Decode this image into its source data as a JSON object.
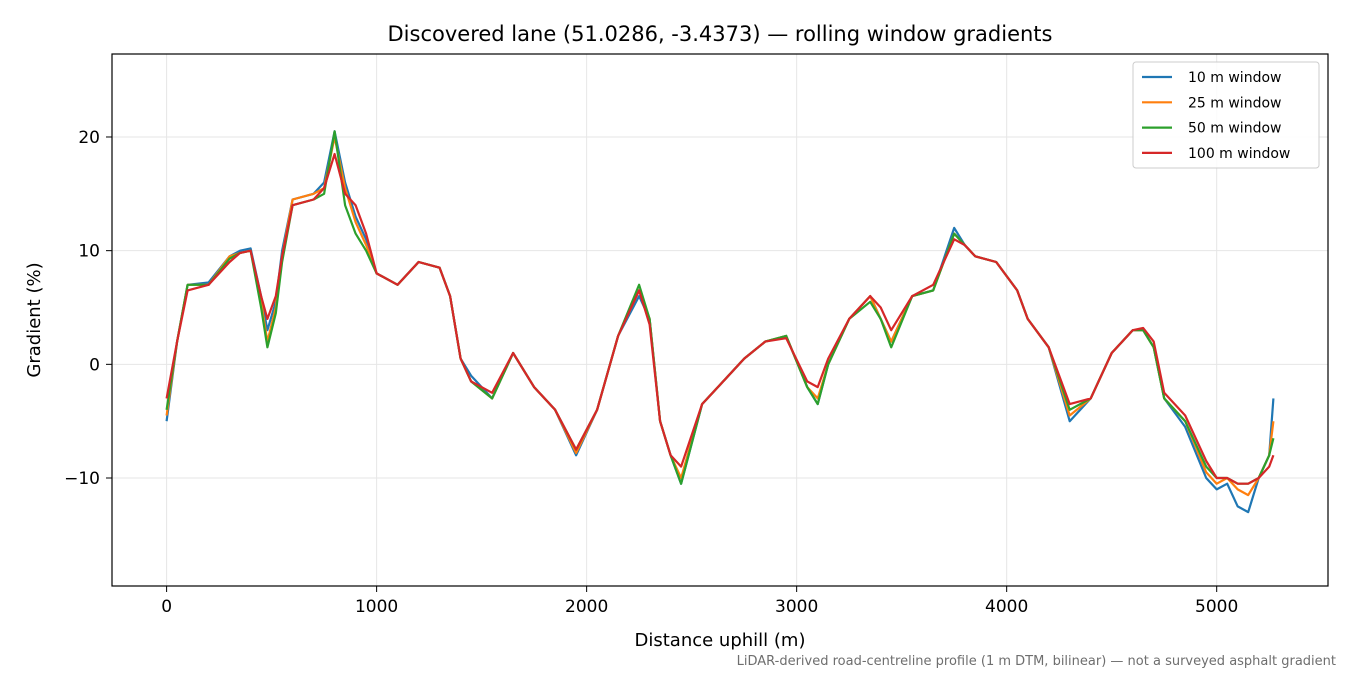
{
  "chart_data": {
    "type": "line",
    "title": "Discovered lane (51.0286, -3.4373) — rolling window gradients",
    "xlabel": "Distance uphill (m)",
    "ylabel": "Gradient (%)",
    "footnote": "LiDAR-derived road-centreline profile (1 m DTM, bilinear) — not a surveyed asphalt gradient",
    "xlim": [
      -260,
      5530
    ],
    "ylim": [
      -19.5,
      27.3
    ],
    "x_ticks": [
      0,
      1000,
      2000,
      3000,
      4000,
      5000
    ],
    "x_tick_labels": [
      "0",
      "1000",
      "2000",
      "3000",
      "4000",
      "5000"
    ],
    "y_ticks": [
      20,
      10,
      0,
      -10
    ],
    "y_tick_labels": [
      "20",
      "10",
      "0",
      "−10"
    ],
    "grid": true,
    "legend_position": "top-right",
    "x": [
      0,
      50,
      100,
      200,
      300,
      350,
      400,
      450,
      480,
      520,
      550,
      600,
      700,
      750,
      800,
      850,
      900,
      950,
      1000,
      1100,
      1200,
      1300,
      1350,
      1400,
      1450,
      1550,
      1650,
      1750,
      1850,
      1950,
      2050,
      2150,
      2250,
      2300,
      2350,
      2400,
      2450,
      2550,
      2650,
      2750,
      2850,
      2950,
      3050,
      3100,
      3150,
      3250,
      3350,
      3400,
      3450,
      3550,
      3650,
      3750,
      3800,
      3850,
      3950,
      4050,
      4100,
      4200,
      4300,
      4400,
      4500,
      4600,
      4650,
      4700,
      4750,
      4850,
      4950,
      5000,
      5050,
      5100,
      5150,
      5200,
      5250,
      5270
    ],
    "series": [
      {
        "name": "10 m window",
        "color": "#1f77b4",
        "values": [
          -5.0,
          2.0,
          7.0,
          7.2,
          9.5,
          10.0,
          10.2,
          6.0,
          3.0,
          5.5,
          10.0,
          14.5,
          15.0,
          16.0,
          20.5,
          16.0,
          13.0,
          11.0,
          8.0,
          7.0,
          9.0,
          8.5,
          6.0,
          0.5,
          -1.0,
          -3.0,
          1.0,
          -2.0,
          -4.0,
          -8.0,
          -4.0,
          2.5,
          6.0,
          4.0,
          -5.0,
          -8.0,
          -10.5,
          -3.5,
          -1.5,
          0.5,
          2.0,
          2.5,
          -2.0,
          -3.5,
          0.0,
          4.0,
          6.0,
          4.0,
          2.0,
          6.0,
          6.5,
          12.0,
          10.5,
          9.5,
          9.0,
          6.5,
          4.0,
          1.5,
          -5.0,
          -3.0,
          1.0,
          3.0,
          3.0,
          1.5,
          -3.0,
          -5.5,
          -10.0,
          -11.0,
          -10.5,
          -12.5,
          -13.0,
          -10.0,
          -8.0,
          -3.0
        ]
      },
      {
        "name": "25 m window",
        "color": "#ff7f0e",
        "values": [
          -4.5,
          2.0,
          7.0,
          7.0,
          9.5,
          9.8,
          10.0,
          5.5,
          2.0,
          5.0,
          9.5,
          14.5,
          15.0,
          15.5,
          20.0,
          15.5,
          12.5,
          10.5,
          8.0,
          7.0,
          9.0,
          8.5,
          6.0,
          0.5,
          -1.5,
          -3.0,
          1.0,
          -2.0,
          -4.0,
          -7.8,
          -4.0,
          2.5,
          6.5,
          4.0,
          -5.0,
          -8.0,
          -10.0,
          -3.5,
          -1.5,
          0.5,
          2.0,
          2.5,
          -2.0,
          -3.0,
          0.0,
          4.0,
          6.0,
          4.0,
          2.0,
          6.0,
          6.5,
          11.5,
          10.5,
          9.5,
          9.0,
          6.5,
          4.0,
          1.5,
          -4.5,
          -3.0,
          1.0,
          3.0,
          3.0,
          1.5,
          -3.0,
          -5.0,
          -9.5,
          -10.5,
          -10.0,
          -11.0,
          -11.5,
          -10.0,
          -8.0,
          -5.0
        ]
      },
      {
        "name": "50 m window",
        "color": "#2ca02c",
        "values": [
          -4.0,
          2.0,
          7.0,
          7.0,
          9.3,
          9.8,
          10.0,
          5.0,
          1.5,
          4.5,
          9.0,
          14.0,
          14.5,
          15.0,
          20.5,
          14.0,
          11.5,
          10.0,
          8.0,
          7.0,
          9.0,
          8.5,
          6.0,
          0.5,
          -1.5,
          -3.0,
          1.0,
          -2.0,
          -4.0,
          -7.5,
          -4.0,
          2.5,
          7.0,
          4.0,
          -5.0,
          -8.0,
          -10.5,
          -3.5,
          -1.5,
          0.5,
          2.0,
          2.5,
          -2.0,
          -3.5,
          0.0,
          4.0,
          5.5,
          4.0,
          1.5,
          6.0,
          6.5,
          11.5,
          10.5,
          9.5,
          9.0,
          6.5,
          4.0,
          1.5,
          -4.0,
          -3.0,
          1.0,
          3.0,
          3.0,
          1.5,
          -3.0,
          -5.0,
          -9.0,
          -10.0,
          -10.0,
          -10.5,
          -10.5,
          -10.0,
          -8.0,
          -6.5
        ]
      },
      {
        "name": "100 m window",
        "color": "#d62728",
        "values": [
          -3.0,
          2.0,
          6.5,
          7.0,
          9.0,
          9.8,
          10.0,
          6.0,
          4.0,
          6.0,
          9.5,
          14.0,
          14.5,
          15.5,
          18.5,
          15.0,
          14.0,
          11.5,
          8.0,
          7.0,
          9.0,
          8.5,
          6.0,
          0.5,
          -1.5,
          -2.5,
          1.0,
          -2.0,
          -4.0,
          -7.5,
          -4.0,
          2.5,
          6.5,
          3.5,
          -5.0,
          -8.0,
          -9.0,
          -3.5,
          -1.5,
          0.5,
          2.0,
          2.3,
          -1.5,
          -2.0,
          0.5,
          4.0,
          6.0,
          5.0,
          3.0,
          6.0,
          7.0,
          11.0,
          10.5,
          9.5,
          9.0,
          6.5,
          4.0,
          1.5,
          -3.5,
          -3.0,
          1.0,
          3.0,
          3.2,
          2.0,
          -2.5,
          -4.5,
          -8.5,
          -10.0,
          -10.0,
          -10.5,
          -10.5,
          -10.0,
          -9.0,
          -8.0
        ]
      }
    ]
  }
}
